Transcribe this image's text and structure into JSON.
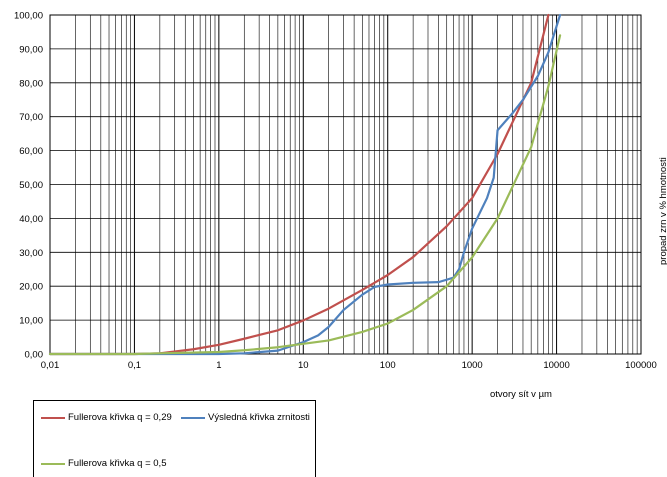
{
  "chart_data": {
    "type": "line",
    "x_scale": "log",
    "xlim": [
      0.01,
      100000
    ],
    "ylim": [
      0,
      100
    ],
    "grid": true,
    "xlabel": "otvory  sít v µm",
    "ylabel": "propad zrn v % hmotnosti",
    "x_ticks": [
      "0,01",
      "0,1",
      "1",
      "10",
      "100",
      "1000",
      "10000",
      "100000"
    ],
    "y_ticks": [
      "0,00",
      "10,00",
      "20,00",
      "30,00",
      "40,00",
      "50,00",
      "60,00",
      "70,00",
      "80,00",
      "90,00",
      "100,00"
    ],
    "legend_position": "bottom-left",
    "series": [
      {
        "name": "Fullerova křivka q = 0,29",
        "color": "#c0504d",
        "x": [
          0.01,
          0.1,
          0.2,
          0.5,
          1,
          2,
          5,
          10,
          20,
          50,
          100,
          200,
          500,
          1000,
          2000,
          5000,
          8000
        ],
        "y": [
          0,
          0,
          0.2,
          1.4,
          2.7,
          4.5,
          7.0,
          9.9,
          13.4,
          18.9,
          23.3,
          28.6,
          37.7,
          46.0,
          59.0,
          80.0,
          100
        ]
      },
      {
        "name": "Výsledná křivka zrnitosti",
        "color": "#4f81bd",
        "x": [
          0.01,
          1,
          2,
          5,
          10,
          15,
          20,
          30,
          50,
          70,
          100,
          200,
          400,
          600,
          700,
          800,
          1000,
          1500,
          1800,
          2000,
          3000,
          4000,
          6000,
          8000,
          11000
        ],
        "y": [
          0,
          0,
          0.2,
          1.0,
          3.5,
          5.5,
          8.0,
          13.0,
          17.5,
          19.8,
          20.5,
          21.0,
          21.2,
          22.5,
          25.0,
          30.0,
          37.0,
          46.0,
          52.0,
          66.0,
          71.0,
          75.0,
          82.0,
          89.0,
          100
        ]
      },
      {
        "name": "Fullerova křivka q = 0,5",
        "color": "#9bbb59",
        "x": [
          0.01,
          0.1,
          0.2,
          1,
          2,
          5,
          10,
          20,
          50,
          100,
          200,
          500,
          1000,
          2000,
          5000,
          8000,
          11000
        ],
        "y": [
          0,
          0,
          0.2,
          0.6,
          1.1,
          2.0,
          3.0,
          4.0,
          6.5,
          9.0,
          13.0,
          20.0,
          28.5,
          40.0,
          61.0,
          79.0,
          94.0
        ]
      }
    ]
  }
}
